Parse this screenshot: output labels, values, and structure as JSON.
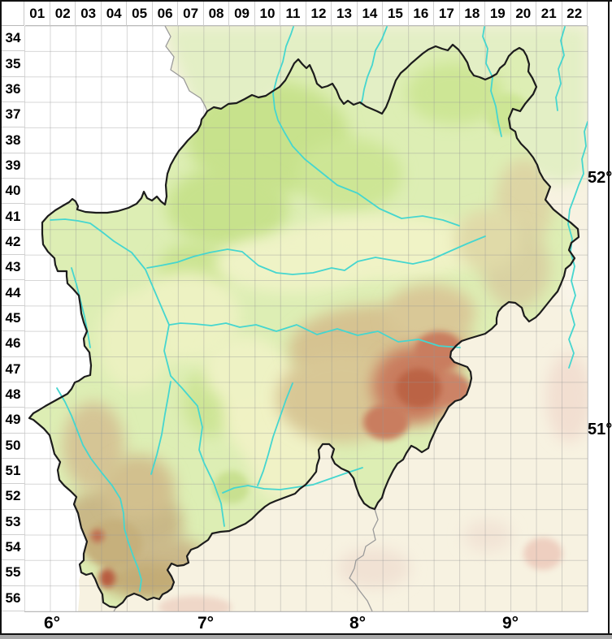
{
  "grid": {
    "column_labels": [
      "01",
      "02",
      "03",
      "04",
      "05",
      "06",
      "07",
      "08",
      "09",
      "10",
      "11",
      "12",
      "13",
      "14",
      "15",
      "16",
      "17",
      "18",
      "19",
      "20",
      "21",
      "22"
    ],
    "row_labels": [
      "34",
      "35",
      "36",
      "37",
      "38",
      "39",
      "40",
      "41",
      "42",
      "43",
      "44",
      "45",
      "46",
      "47",
      "48",
      "49",
      "50",
      "51",
      "52",
      "53",
      "54",
      "55",
      "56"
    ],
    "longitude_labels": [
      "6°",
      "7°",
      "8°",
      "9°"
    ],
    "latitude_labels": [
      "52°",
      "51°"
    ]
  },
  "colors": {
    "frame": "#111111",
    "grid_line": "#cccccc",
    "region_border": "#1c1c1c",
    "state_border": "#9a9a9a",
    "river": "#45d6cf",
    "lowland_green": "#c7e28c",
    "region_base_green": "#ddeeb4",
    "north_strip_green": "#e3efc5",
    "upland_tan": "#d6c391",
    "highland_red": "#c4744f",
    "outside_cream": "#f7f2e1",
    "outside_pink": "#f2dfd1",
    "label_text": "#000000"
  }
}
